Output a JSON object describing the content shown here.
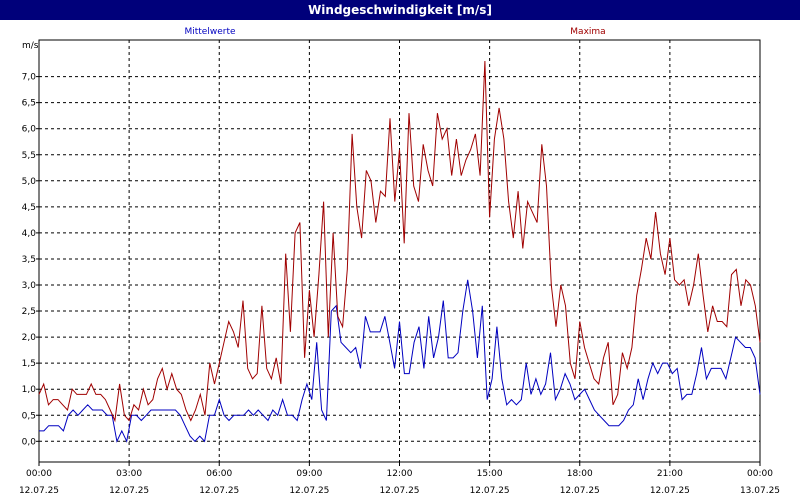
{
  "window": {
    "title": "Windgeschwindigkeit [m/s]"
  },
  "chart_data": {
    "type": "line",
    "title": "Windgeschwindigkeit [m/s]",
    "ylabel": "m/s",
    "xlabel": "",
    "ylim": [
      -0.4,
      8.0
    ],
    "xlim": [
      0,
      24
    ],
    "y_ticks": [
      "0,0",
      "0,5",
      "1,0",
      "1,5",
      "2,0",
      "2,5",
      "3,0",
      "3,5",
      "4,0",
      "4,5",
      "5,0",
      "5,5",
      "6,0",
      "6,5",
      "7,0"
    ],
    "x_ticks": [
      {
        "time": "00:00",
        "date": "12.07.25"
      },
      {
        "time": "03:00",
        "date": "12.07.25"
      },
      {
        "time": "06:00",
        "date": "12.07.25"
      },
      {
        "time": "09:00",
        "date": "12.07.25"
      },
      {
        "time": "12:00",
        "date": "12.07.25"
      },
      {
        "time": "15:00",
        "date": "12.07.25"
      },
      {
        "time": "18:00",
        "date": "12.07.25"
      },
      {
        "time": "21:00",
        "date": "12.07.25"
      },
      {
        "time": "00:00",
        "date": "13.07.25"
      }
    ],
    "grid": true,
    "x_interval_hours": 0.1667,
    "series": [
      {
        "name": "Mittelwerte",
        "color": "#0000c0",
        "values": [
          0.2,
          0.2,
          0.3,
          0.3,
          0.3,
          0.2,
          0.5,
          0.6,
          0.5,
          0.6,
          0.7,
          0.6,
          0.6,
          0.6,
          0.5,
          0.5,
          0.0,
          0.2,
          0.0,
          0.5,
          0.5,
          0.4,
          0.5,
          0.6,
          0.6,
          0.6,
          0.6,
          0.6,
          0.6,
          0.5,
          0.3,
          0.1,
          0.0,
          0.1,
          0.0,
          0.5,
          0.5,
          0.8,
          0.5,
          0.4,
          0.5,
          0.5,
          0.5,
          0.6,
          0.5,
          0.6,
          0.5,
          0.4,
          0.6,
          0.5,
          0.8,
          0.5,
          0.5,
          0.4,
          0.8,
          1.1,
          0.8,
          1.9,
          0.6,
          0.4,
          2.5,
          2.6,
          1.9,
          1.8,
          1.7,
          1.8,
          1.4,
          2.4,
          2.1,
          2.1,
          2.1,
          2.4,
          1.9,
          1.4,
          2.3,
          1.3,
          1.3,
          1.9,
          2.2,
          1.4,
          2.4,
          1.6,
          2.0,
          2.7,
          1.6,
          1.6,
          1.7,
          2.5,
          3.1,
          2.5,
          1.6,
          2.6,
          0.8,
          1.2,
          2.2,
          1.2,
          0.7,
          0.8,
          0.7,
          0.8,
          1.5,
          0.9,
          1.2,
          0.9,
          1.1,
          1.7,
          0.8,
          1.0,
          1.3,
          1.1,
          0.8,
          0.9,
          1.0,
          0.8,
          0.6,
          0.5,
          0.4,
          0.3,
          0.3,
          0.3,
          0.4,
          0.6,
          0.7,
          1.2,
          0.8,
          1.2,
          1.5,
          1.3,
          1.5,
          1.5,
          1.3,
          1.4,
          0.8,
          0.9,
          0.9,
          1.3,
          1.8,
          1.2,
          1.4,
          1.4,
          1.4,
          1.2,
          1.6,
          2.0,
          1.9,
          1.8,
          1.8,
          1.6,
          0.9
        ]
      },
      {
        "name": "Maxima",
        "color": "#a00000",
        "values": [
          0.9,
          1.1,
          0.7,
          0.8,
          0.8,
          0.7,
          0.6,
          1.0,
          0.9,
          0.9,
          0.9,
          1.1,
          0.9,
          0.9,
          0.8,
          0.6,
          0.4,
          1.1,
          0.5,
          0.4,
          0.7,
          0.6,
          1.0,
          0.7,
          0.8,
          1.2,
          1.4,
          1.0,
          1.3,
          1.0,
          0.9,
          0.6,
          0.4,
          0.6,
          0.9,
          0.5,
          1.5,
          1.1,
          1.5,
          1.9,
          2.3,
          2.1,
          1.8,
          2.7,
          1.4,
          1.2,
          1.3,
          2.6,
          1.4,
          1.2,
          1.6,
          1.1,
          3.6,
          2.1,
          4.0,
          4.2,
          1.6,
          2.9,
          2.0,
          3.2,
          4.6,
          2.0,
          4.0,
          2.4,
          2.2,
          3.3,
          5.9,
          4.5,
          3.9,
          5.2,
          5.0,
          4.2,
          4.8,
          4.7,
          6.2,
          4.6,
          5.6,
          3.8,
          6.3,
          4.9,
          4.6,
          5.7,
          5.2,
          4.9,
          6.3,
          5.8,
          6.0,
          5.1,
          5.8,
          5.1,
          5.4,
          5.6,
          5.9,
          5.1,
          7.3,
          4.3,
          5.8,
          6.4,
          5.8,
          4.6,
          3.9,
          4.8,
          3.7,
          4.6,
          4.4,
          4.2,
          5.7,
          4.9,
          3.0,
          2.2,
          3.0,
          2.6,
          1.5,
          1.2,
          2.3,
          1.8,
          1.5,
          1.2,
          1.1,
          1.6,
          1.9,
          0.7,
          0.9,
          1.7,
          1.4,
          1.8,
          2.8,
          3.3,
          3.9,
          3.5,
          4.4,
          3.6,
          3.2,
          3.9,
          3.1,
          3.0,
          3.1,
          2.6,
          3.0,
          3.6,
          2.8,
          2.1,
          2.6,
          2.3,
          2.3,
          2.2,
          3.2,
          3.3,
          2.6,
          3.1,
          3.0,
          2.6,
          1.9
        ]
      }
    ],
    "legend": "top"
  }
}
